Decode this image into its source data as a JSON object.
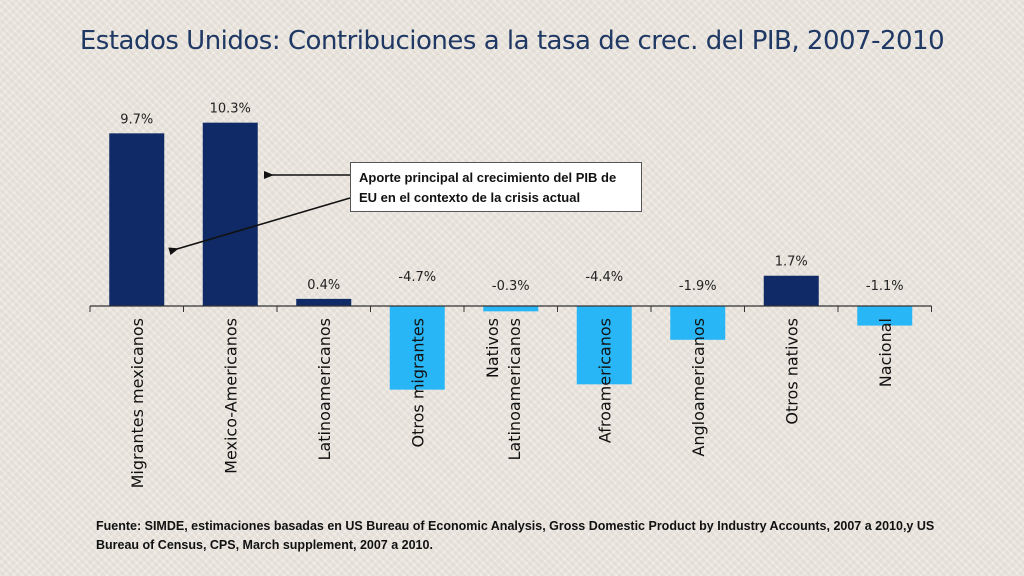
{
  "slide": {
    "title": "Estados Unidos: Contribuciones a la tasa de crec. del PIB, 2007-2010",
    "annotation": "Aporte principal al crecimiento del PIB de EU en el contexto de la crisis actual",
    "footer": "Fuente: SIMDE, estimaciones basadas en US Bureau of Economic Analysis, Gross Domestic Product by Industry Accounts, 2007 a 2010,y US Bureau of Census, CPS, March supplement, 2007 a 2010."
  },
  "colors": {
    "positive_bar": "#0f2a66",
    "negative_bar": "#29b6f6",
    "title": "#1f3864"
  },
  "chart_data": {
    "type": "bar",
    "title": "Estados Unidos: Contribuciones a la tasa de crec. del PIB, 2007-2010",
    "xlabel": "",
    "ylabel": "",
    "ylim": [
      -5.2,
      10.8
    ],
    "grid": false,
    "categories": [
      [
        "Migrantes mexicanos"
      ],
      [
        "Mexico-Americanos"
      ],
      [
        "Latinoamericanos"
      ],
      [
        "Otros migrantes"
      ],
      [
        "Nativos",
        "Latinoamericanos"
      ],
      [
        "Afroamericanos"
      ],
      [
        "Angloamericanos"
      ],
      [
        "Otros nativos"
      ],
      [
        "Nacional"
      ]
    ],
    "values": [
      9.7,
      10.3,
      0.4,
      -4.7,
      -0.3,
      -4.4,
      -1.9,
      1.7,
      -1.1
    ],
    "labels": [
      "9.7%",
      "10.3%",
      "0.4%",
      "-4.7%",
      "-0.3%",
      "-4.4%",
      "-1.9%",
      "1.7%",
      "-1.1%"
    ]
  }
}
